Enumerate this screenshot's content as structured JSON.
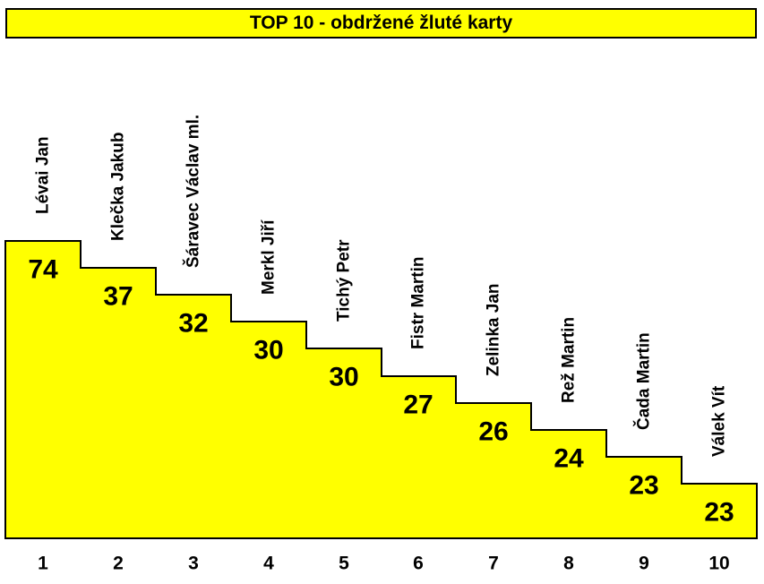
{
  "header": {
    "title": "TOP 10 - obdržené žluté karty",
    "background_color": "#FFFF00",
    "border_color": "#000000",
    "text_color": "#000000"
  },
  "chart_data": {
    "type": "bar",
    "title": "TOP 10 - obdržené žluté karty",
    "categories": [
      "1",
      "2",
      "3",
      "4",
      "5",
      "6",
      "7",
      "8",
      "9",
      "10"
    ],
    "bar_labels": [
      "Lévai Jan",
      "Klečka Jakub",
      "Šáravec Václav ml.",
      "Merkl Jiří",
      "Tichý Petr",
      "Fistr Martin",
      "Zelinka Jan",
      "Rež Martin",
      "Čada Martin",
      "Válek Vít"
    ],
    "values": [
      74,
      37,
      32,
      30,
      30,
      27,
      26,
      24,
      23,
      23
    ],
    "xlabel": "",
    "ylabel": "",
    "bar_color": "#FFFF00",
    "outline_color": "#000000",
    "label_color": "#000000",
    "grid": false,
    "legend": false,
    "layout_hint": "descending staircase of connected bars with uniform step height (not value-proportional); value shown inside top of each bar; player name rotated 90deg above each bar; rank number centered below each bar"
  }
}
